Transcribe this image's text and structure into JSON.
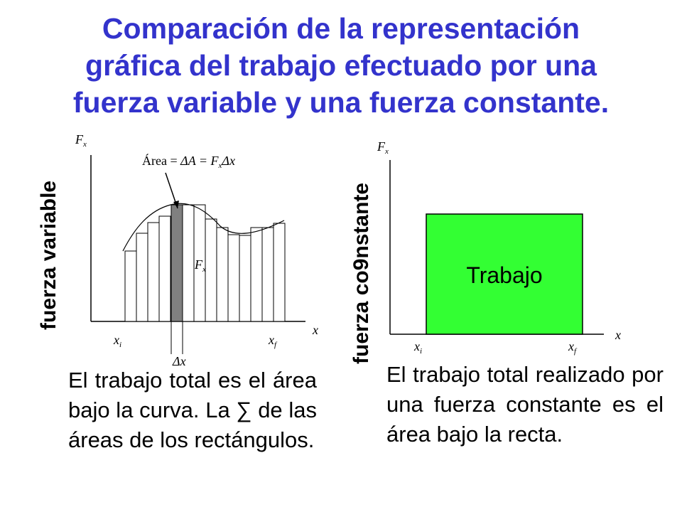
{
  "title": {
    "line1": "Comparación de la representación",
    "line2": "gráfica del trabajo efectuado por una",
    "line3": "fuerza variable y una fuerza constante."
  },
  "left": {
    "side_label": "fuerza variable",
    "y_axis": "F",
    "y_axis_sub": "x",
    "x_axis": "x",
    "area_text": "Área = ",
    "area_delta_a": "ΔA",
    "area_eq": " = F",
    "area_sub": "x",
    "area_dx": "Δx",
    "fx_label": "F",
    "fx_sub": "x",
    "xi": "x",
    "xi_sub": "i",
    "xf": "x",
    "xf_sub": "f",
    "dx_label": "Δx",
    "paragraph": "El trabajo total es el área bajo la curva. La ∑ de las áreas de los rectángulos."
  },
  "right": {
    "side_label": "fuerza co9nstante",
    "y_axis": "F",
    "y_axis_sub": "x",
    "x_axis": "x",
    "box_label": "Trabajo",
    "xi": "x",
    "xi_sub": "i",
    "xf": "x",
    "xf_sub": "f",
    "paragraph": "El trabajo total realizado por una fuerza constante es el área bajo la recta."
  },
  "colors": {
    "title": "#3333cc",
    "work_box": "#33ff33",
    "highlight_bar": "#808080"
  }
}
